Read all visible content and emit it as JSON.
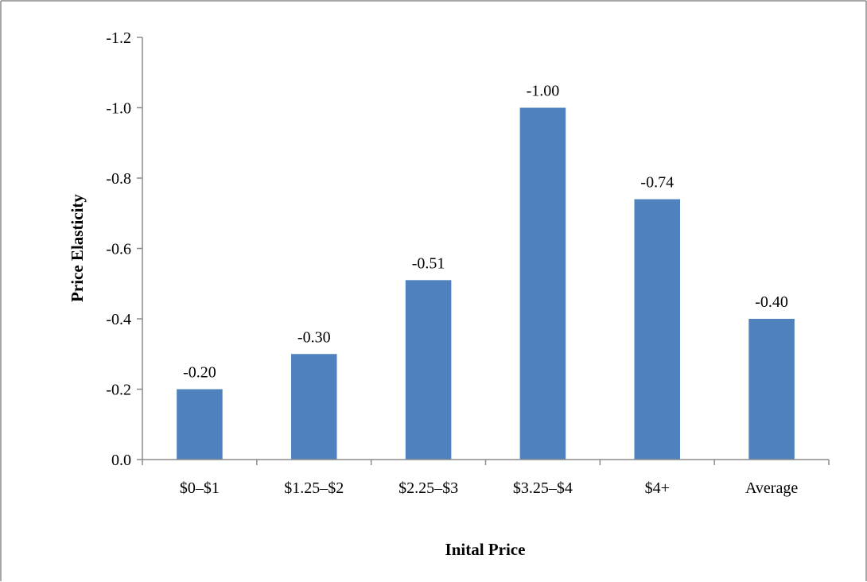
{
  "chart_data": {
    "type": "bar",
    "title": "",
    "xlabel": "Inital Price",
    "ylabel": "Price Elasticity",
    "categories": [
      "$0–$1",
      "$1.25–$2",
      "$2.25–$3",
      "$3.25–$4",
      "$4+",
      "Average"
    ],
    "values": [
      -0.2,
      -0.3,
      -0.51,
      -1.0,
      -0.74,
      -0.4
    ],
    "data_labels": [
      "-0.20",
      "-0.30",
      "-0.51",
      "-1.00",
      "-0.74",
      "-0.40"
    ],
    "y_ticks": [
      "0.0",
      "-0.2",
      "-0.4",
      "-0.6",
      "-0.8",
      "-1.0",
      "-1.2"
    ],
    "ylim": [
      0,
      -1.2
    ],
    "y_axis_inverted": true,
    "grid": false,
    "legend": "none",
    "bar_color": "#4F81BD",
    "border_color": "#8C8C8C"
  }
}
